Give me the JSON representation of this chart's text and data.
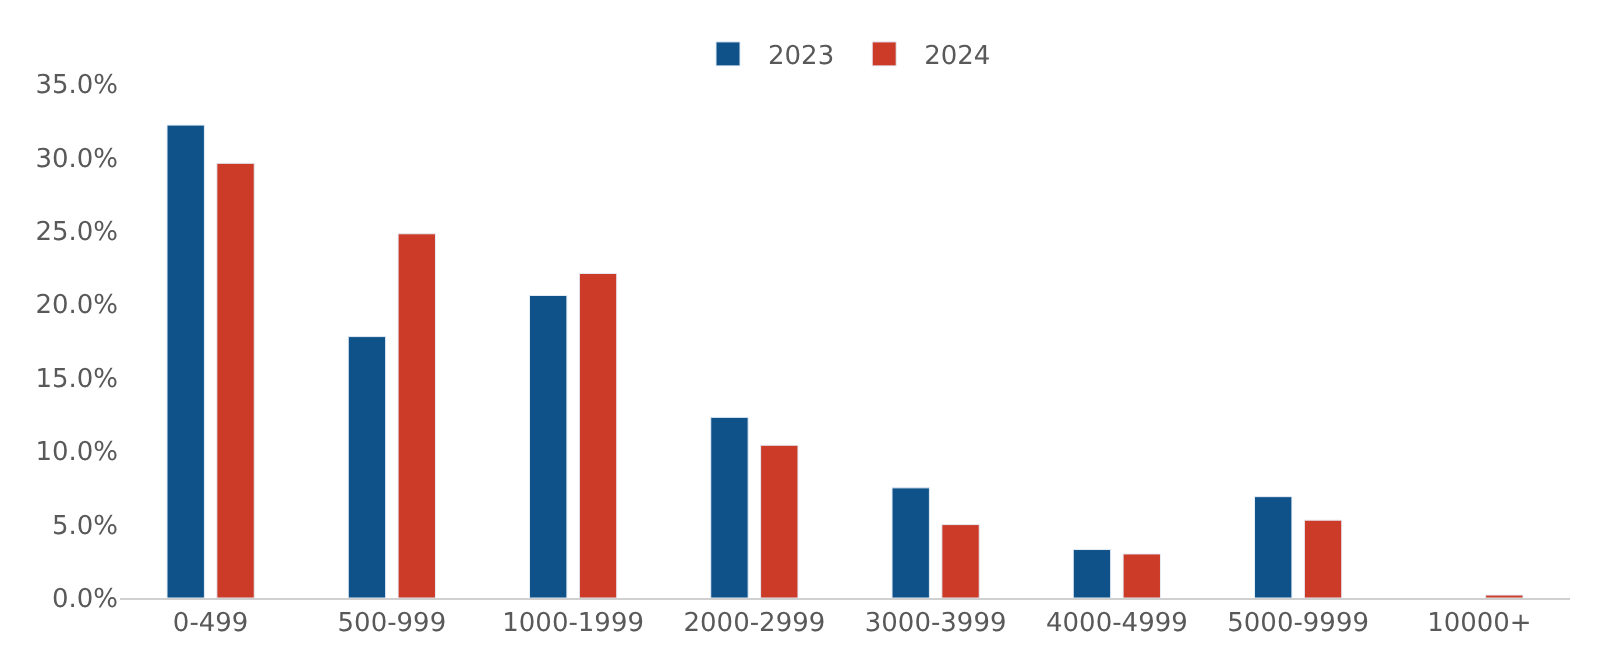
{
  "chart_data": {
    "type": "bar",
    "categories": [
      "0-499",
      "500-999",
      "1000-1999",
      "2000-2999",
      "3000-3999",
      "4000-4999",
      "5000-9999",
      "10000+"
    ],
    "series": [
      {
        "name": "2023",
        "color": "#0e5289",
        "values": [
          32.2,
          17.8,
          20.6,
          12.3,
          7.5,
          3.3,
          6.9,
          null
        ]
      },
      {
        "name": "2024",
        "color": "#cc3a28",
        "values": [
          29.6,
          24.8,
          22.1,
          10.4,
          5.0,
          3.0,
          5.3,
          0.2
        ]
      }
    ],
    "ylim": [
      0,
      35
    ],
    "yticks": [
      {
        "value": 0,
        "label": "0.0%"
      },
      {
        "value": 5,
        "label": "5.0%"
      },
      {
        "value": 10,
        "label": "10.0%"
      },
      {
        "value": 15,
        "label": "15.0%"
      },
      {
        "value": 20,
        "label": "20.0%"
      },
      {
        "value": 25,
        "label": "25.0%"
      },
      {
        "value": 30,
        "label": "30.0%"
      },
      {
        "value": 35,
        "label": "35.0%"
      }
    ],
    "grid": false,
    "legend": "top"
  }
}
